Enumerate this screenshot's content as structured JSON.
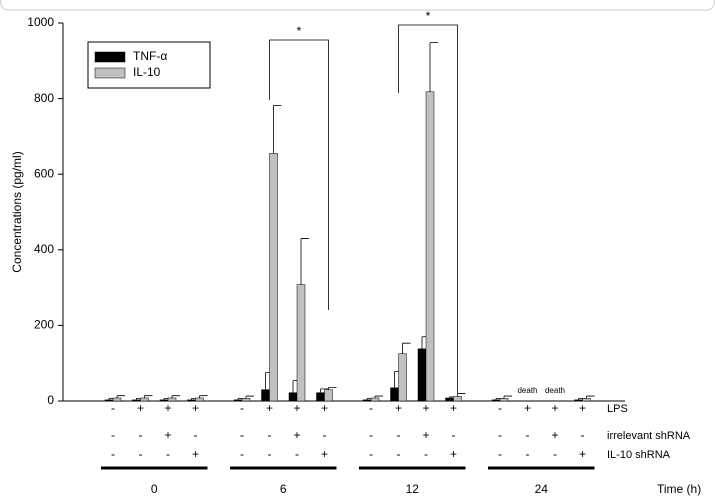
{
  "chart_data": {
    "type": "bar",
    "ylabel": "Concentrations (pg/ml)",
    "ylim": [
      0,
      1000
    ],
    "yticks": [
      0,
      200,
      400,
      600,
      800,
      1000
    ],
    "groups": [
      "0",
      "6",
      "12",
      "24"
    ],
    "group_axis_label": "Time (h)",
    "condition_rows": [
      {
        "label": "LPS",
        "signs": [
          "-",
          "+",
          "+",
          "+",
          "-",
          "+",
          "+",
          "+",
          "-",
          "+",
          "+",
          "+",
          "-",
          "+",
          "+",
          "+"
        ]
      },
      {
        "label": "irrelevant shRNA",
        "signs": [
          "-",
          "-",
          "+",
          "-",
          "-",
          "-",
          "+",
          "-",
          "-",
          "-",
          "+",
          "-",
          "-",
          "-",
          "+",
          "-"
        ]
      },
      {
        "label": "IL-10 shRNA",
        "signs": [
          "-",
          "-",
          "-",
          "+",
          "-",
          "-",
          "-",
          "+",
          "-",
          "-",
          "-",
          "+",
          "-",
          "-",
          "-",
          "+"
        ]
      }
    ],
    "series": [
      {
        "name": "TNF-α",
        "color": "#000000",
        "values": [
          3,
          3,
          3,
          3,
          3,
          30,
          22,
          22,
          3,
          35,
          138,
          8,
          3,
          null,
          null,
          3
        ],
        "errors": [
          4,
          4,
          4,
          4,
          4,
          45,
          32,
          10,
          4,
          43,
          32,
          3,
          4,
          null,
          null,
          4
        ]
      },
      {
        "name": "IL-10",
        "color": "#c0c0c0",
        "values": [
          8,
          8,
          8,
          8,
          7,
          655,
          308,
          30,
          8,
          125,
          818,
          12,
          7,
          null,
          null,
          7
        ],
        "errors": [
          6,
          6,
          6,
          6,
          6,
          127,
          122,
          6,
          5,
          28,
          130,
          8,
          6,
          null,
          null,
          6
        ]
      }
    ],
    "significance_labels": [
      "*",
      "*"
    ],
    "missing_labels": [
      "death",
      "death"
    ]
  }
}
